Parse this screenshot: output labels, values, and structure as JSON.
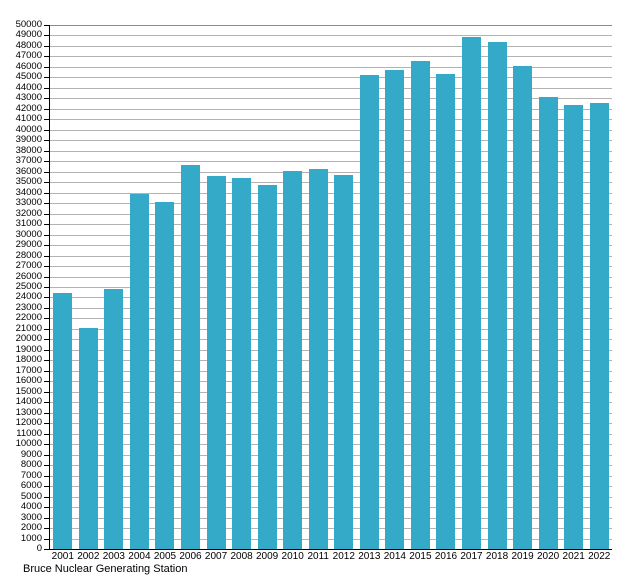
{
  "chart_data": {
    "type": "bar",
    "title": "",
    "footer": "Bruce Nuclear Generating Station",
    "categories": [
      "2001",
      "2002",
      "2003",
      "2004",
      "2005",
      "2006",
      "2007",
      "2008",
      "2009",
      "2010",
      "2011",
      "2012",
      "2013",
      "2014",
      "2015",
      "2016",
      "2017",
      "2018",
      "2019",
      "2020",
      "2021",
      "2022"
    ],
    "values": [
      24400,
      21100,
      24800,
      33900,
      33100,
      36600,
      35600,
      35400,
      34700,
      36100,
      36300,
      35700,
      45200,
      45700,
      46600,
      45300,
      48900,
      48400,
      46100,
      43100,
      42400,
      42600
    ],
    "ylim": [
      0,
      50000
    ],
    "y_tick_step": 1000,
    "y_ticks": [
      0,
      1000,
      2000,
      3000,
      4000,
      5000,
      6000,
      7000,
      8000,
      9000,
      10000,
      11000,
      12000,
      13000,
      14000,
      15000,
      16000,
      17000,
      18000,
      19000,
      20000,
      21000,
      22000,
      23000,
      24000,
      25000,
      26000,
      27000,
      28000,
      29000,
      30000,
      31000,
      32000,
      33000,
      34000,
      35000,
      36000,
      37000,
      38000,
      39000,
      40000,
      41000,
      42000,
      43000,
      44000,
      45000,
      46000,
      47000,
      48000,
      49000,
      50000
    ],
    "xlabel": "",
    "ylabel": "",
    "grid": "on",
    "legend_position": "none",
    "bar_color": "#35aac8",
    "grid_color": "#b3b3b3",
    "axis_color": "#000000"
  }
}
